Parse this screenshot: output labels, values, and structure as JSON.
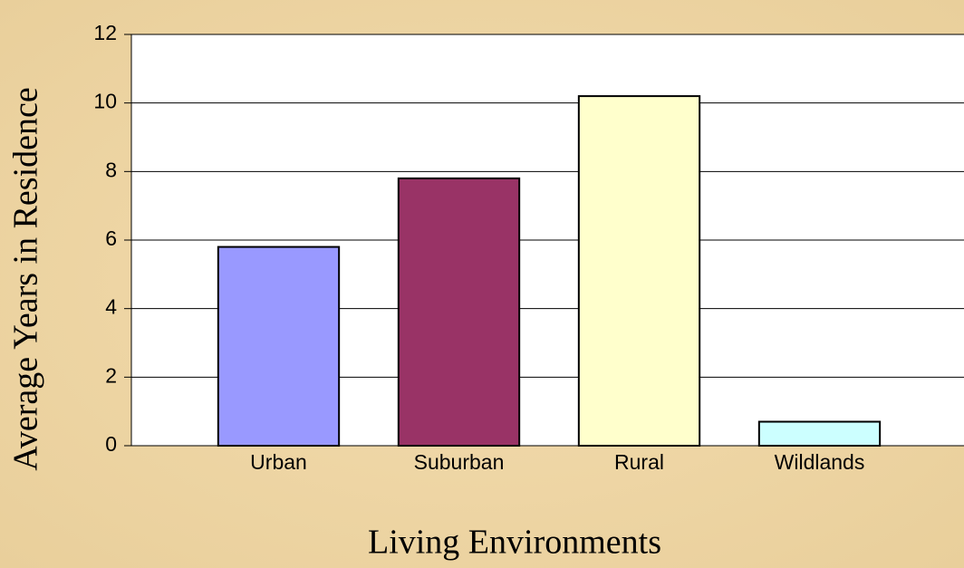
{
  "chart_data": {
    "type": "bar",
    "x_label": "Living Environments",
    "y_label": "Average Years in Residence",
    "categories": [
      "Urban",
      "Suburban",
      "Rural",
      "Wildlands"
    ],
    "values": [
      5.8,
      7.8,
      10.2,
      0.7
    ],
    "colors": [
      "#9999ff",
      "#993366",
      "#ffffcc",
      "#ccffff"
    ],
    "ylim": [
      0,
      12
    ],
    "yticks": [
      0,
      2,
      4,
      6,
      8,
      10,
      12
    ],
    "grid": true
  }
}
